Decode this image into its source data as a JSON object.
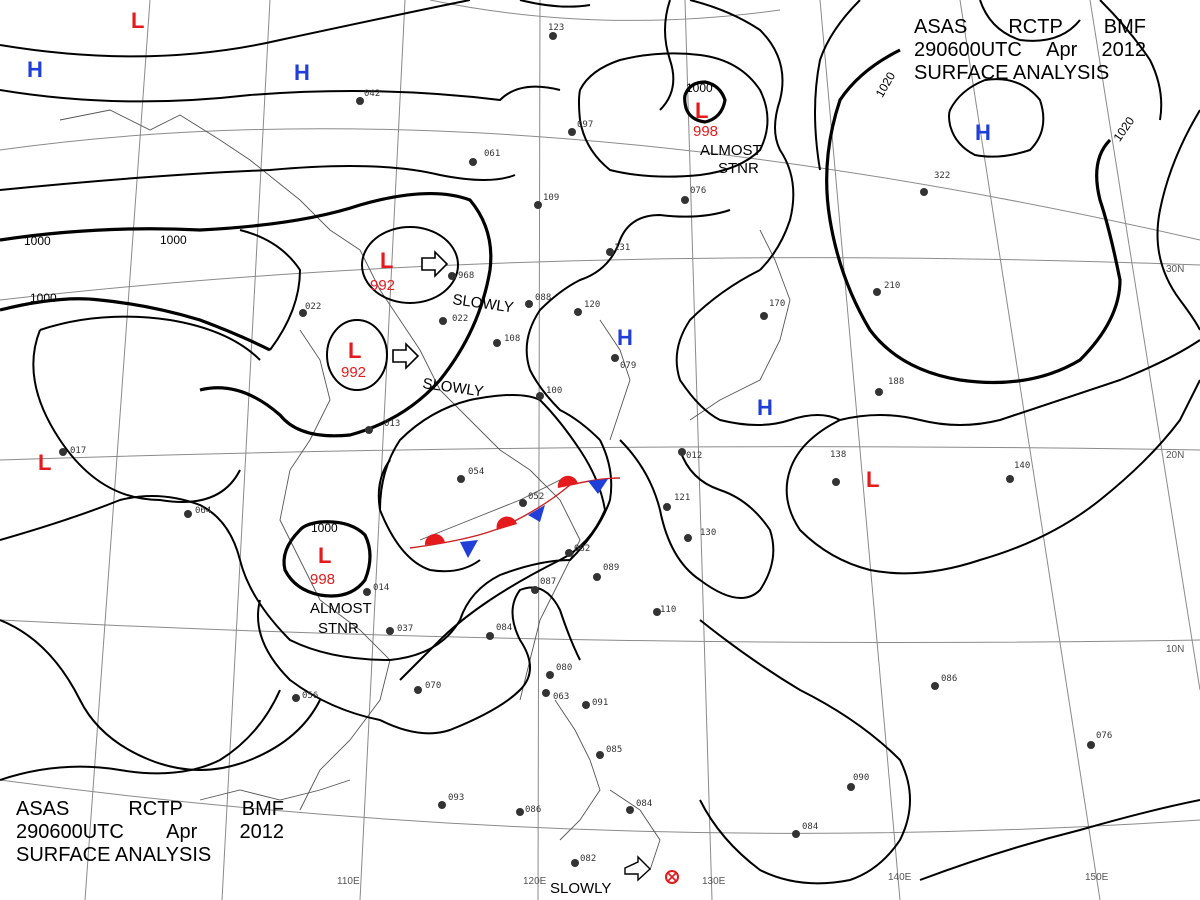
{
  "header": {
    "line1": [
      "ASAS",
      "RCTP",
      "BMF"
    ],
    "line2": [
      "290600UTC",
      "Apr",
      "2012"
    ],
    "line3": "SURFACE  ANALYSIS"
  },
  "isobar_labels": [
    "1000",
    "1000",
    "1000",
    "1000",
    "1000",
    "1020",
    "1020"
  ],
  "longitude_labels": [
    "110E",
    "120E",
    "130E",
    "140E",
    "150E"
  ],
  "latitude_labels": [
    "30N",
    "20N",
    "10N"
  ],
  "pressure_centers": [
    {
      "type": "L",
      "color": "#e41a1c",
      "value": ""
    },
    {
      "type": "H",
      "color": "#1f3fd8",
      "value": ""
    },
    {
      "type": "H",
      "color": "#1f3fd8",
      "value": ""
    },
    {
      "type": "L",
      "color": "#e41a1c",
      "value": "998"
    },
    {
      "type": "H",
      "color": "#1f3fd8",
      "value": ""
    },
    {
      "type": "L",
      "color": "#e41a1c",
      "value": "992"
    },
    {
      "type": "L",
      "color": "#e41a1c",
      "value": "992"
    },
    {
      "type": "L",
      "color": "#e41a1c",
      "value": "998"
    },
    {
      "type": "L",
      "color": "#e41a1c",
      "value": ""
    },
    {
      "type": "H",
      "color": "#1f3fd8",
      "value": ""
    },
    {
      "type": "H",
      "color": "#1f3fd8",
      "value": ""
    },
    {
      "type": "L",
      "color": "#e41a1c",
      "value": ""
    }
  ],
  "movement_labels": [
    "SLOWLY",
    "SLOWLY",
    "ALMOST",
    "STNR",
    "ALMOST",
    "STNR",
    "SLOWLY"
  ],
  "station_values": [
    "123",
    "061",
    "097",
    "109",
    "968",
    "022",
    "052",
    "054",
    "082",
    "089",
    "087",
    "084",
    "080",
    "091",
    "085",
    "084",
    "093",
    "086",
    "082",
    "070",
    "056",
    "064",
    "017",
    "037",
    "014",
    "110",
    "121",
    "130",
    "138",
    "140",
    "188",
    "170",
    "210",
    "322",
    "076",
    "086",
    "090",
    "084",
    "076",
    "120",
    "131",
    "100",
    "108",
    "088",
    "013",
    "079",
    "042",
    "022",
    "012",
    "063"
  ],
  "colors": {
    "low": "#e41a1c",
    "high": "#1f3fd8",
    "isobar": "#000000",
    "grid": "#8a8a8a"
  }
}
